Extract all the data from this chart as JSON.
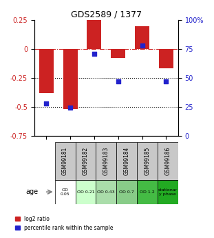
{
  "title": "GDS2589 / 1377",
  "samples": [
    "GSM99181",
    "GSM99182",
    "GSM99183",
    "GSM99184",
    "GSM99185",
    "GSM99186"
  ],
  "log2_ratio": [
    -0.38,
    -0.52,
    0.25,
    -0.08,
    0.2,
    -0.17
  ],
  "percentile_rank": [
    0.28,
    0.24,
    0.71,
    0.47,
    0.78,
    0.47
  ],
  "bar_color": "#cc2222",
  "dot_color": "#2222cc",
  "ylim_left": [
    -0.75,
    0.25
  ],
  "ylim_right": [
    0,
    100
  ],
  "yticks_left": [
    0.25,
    0,
    -0.25,
    -0.5,
    -0.75
  ],
  "yticks_right": [
    100,
    75,
    50,
    25,
    0
  ],
  "hline_0_color": "#cc2222",
  "hline_025_color": "#000000",
  "hline_05_color": "#000000",
  "age_labels": [
    "OD\n0.05",
    "OD 0.21",
    "OD 0.43",
    "OD 0.7",
    "OD 1.2",
    "stationar\ny phase"
  ],
  "age_colors": [
    "#ffffff",
    "#ccffcc",
    "#99ee99",
    "#66dd66",
    "#33cc33",
    "#00bb00"
  ],
  "legend_red": "log2 ratio",
  "legend_blue": "percentile rank within the sample",
  "bar_width": 0.6
}
